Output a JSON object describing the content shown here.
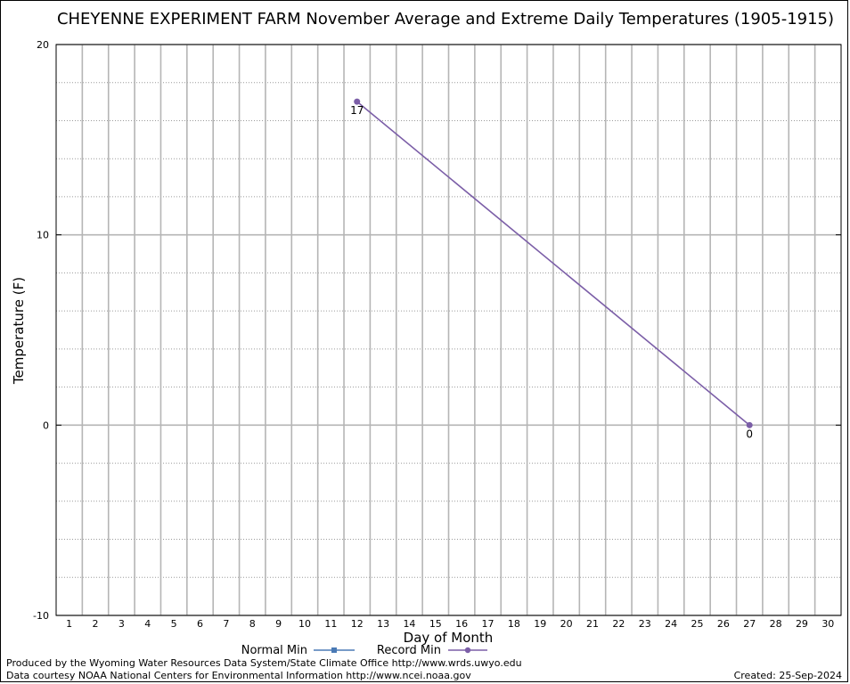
{
  "chart_data": {
    "type": "line",
    "title": "CHEYENNE EXPERIMENT FARM November Average and Extreme Daily Temperatures (1905-1915)",
    "xlabel": "Day of Month",
    "ylabel": "Temperature (F)",
    "xlim": [
      0.5,
      30.5
    ],
    "ylim": [
      -10,
      20
    ],
    "x_ticks": [
      1,
      2,
      3,
      4,
      5,
      6,
      7,
      8,
      9,
      10,
      11,
      12,
      13,
      14,
      15,
      16,
      17,
      18,
      19,
      20,
      21,
      22,
      23,
      24,
      25,
      26,
      27,
      28,
      29,
      30
    ],
    "y_ticks": [
      -10,
      0,
      10,
      20
    ],
    "y_minor_step": 2,
    "grid": true,
    "legend_position": "bottom-center",
    "series": [
      {
        "name": "Normal Min",
        "color": "#4a7ab5",
        "marker": "square",
        "points": []
      },
      {
        "name": "Record Min",
        "color": "#7b5ea7",
        "marker": "circle",
        "points": [
          {
            "x": 12,
            "y": 17
          },
          {
            "x": 27,
            "y": 0
          }
        ],
        "data_labels": [
          "17",
          "0"
        ]
      }
    ]
  },
  "footer": {
    "produced_by": "Produced by the Wyoming Water Resources Data System/State Climate Office http://www.wrds.uwyo.edu",
    "data_courtesy": "Data courtesy NOAA National Centers for Environmental Information http://www.ncei.noaa.gov",
    "created": "Created:  25-Sep-2024"
  }
}
